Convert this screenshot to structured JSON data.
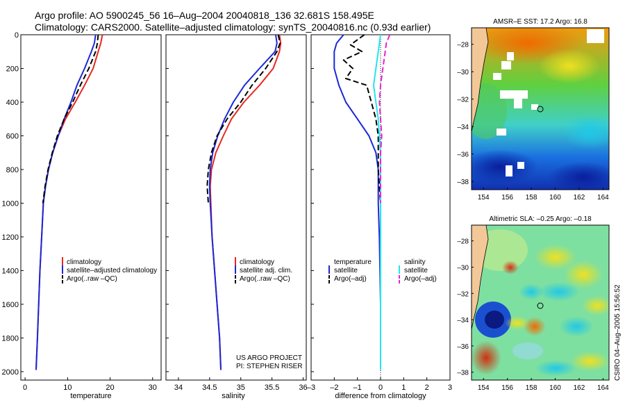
{
  "header": {
    "line1": "Argo profile: AO 5900245_56 16–Aug–2004 20040818_136 32.681S 158.495E",
    "line2": "Climatology: CARS2000. Satellite–adjusted climatology: synTS_20040816.nc (0.93d earlier)"
  },
  "colors": {
    "climatology": "#e8281e",
    "satellite": "#1a28d8",
    "argo": "#000000",
    "sal_satellite": "#22e6ea",
    "sal_argo": "#e622d6"
  },
  "project_credit": {
    "line1": "US ARGO PROJECT",
    "line2": "PI: STEPHEN RISER"
  },
  "timestamp": "CSIRO 04–Aug–2005 15:56:52",
  "chart_data": [
    {
      "id": "temperature",
      "type": "line",
      "xlabel": "temperature",
      "ylabel": "",
      "xlim": [
        -1,
        32
      ],
      "ylim": [
        2050,
        0
      ],
      "x_ticks": [
        0,
        10,
        20,
        30
      ],
      "y_ticks": [
        0,
        200,
        400,
        600,
        800,
        1000,
        1200,
        1400,
        1600,
        1800,
        2000
      ],
      "legend": [
        "climatology",
        "satellite–adjusted climatology",
        "Argo(..raw –QC)"
      ],
      "series": [
        {
          "name": "climatology",
          "color": "#e8281e",
          "dash": "",
          "points": [
            [
              18.2,
              0
            ],
            [
              17.8,
              50
            ],
            [
              17.2,
              100
            ],
            [
              16.0,
              200
            ],
            [
              14.0,
              300
            ],
            [
              11.8,
              400
            ],
            [
              9.5,
              500
            ],
            [
              7.8,
              600
            ],
            [
              6.5,
              700
            ],
            [
              5.5,
              800
            ],
            [
              4.8,
              900
            ],
            [
              4.3,
              1000
            ],
            [
              3.9,
              1200
            ],
            [
              3.5,
              1400
            ],
            [
              3.2,
              1600
            ],
            [
              2.9,
              1800
            ],
            [
              2.6,
              1980
            ]
          ]
        },
        {
          "name": "satellite–adjusted climatology",
          "color": "#1a28d8",
          "dash": "",
          "points": [
            [
              16.6,
              0
            ],
            [
              16.3,
              50
            ],
            [
              15.6,
              100
            ],
            [
              14.0,
              200
            ],
            [
              12.2,
              300
            ],
            [
              10.8,
              400
            ],
            [
              9.2,
              500
            ],
            [
              7.8,
              600
            ],
            [
              6.5,
              700
            ],
            [
              5.5,
              800
            ],
            [
              4.8,
              900
            ],
            [
              4.3,
              1000
            ],
            [
              3.9,
              1200
            ],
            [
              3.5,
              1400
            ],
            [
              3.2,
              1600
            ],
            [
              2.9,
              1800
            ],
            [
              2.6,
              1990
            ]
          ]
        },
        {
          "name": "Argo(..raw –QC)",
          "color": "#000000",
          "dash": "8,4",
          "points": [
            [
              17.2,
              0
            ],
            [
              17.0,
              50
            ],
            [
              16.6,
              100
            ],
            [
              15.0,
              200
            ],
            [
              13.0,
              300
            ],
            [
              11.2,
              400
            ],
            [
              9.2,
              500
            ],
            [
              7.6,
              600
            ],
            [
              6.4,
              700
            ],
            [
              5.4,
              800
            ],
            [
              4.7,
              900
            ],
            [
              4.2,
              1000
            ]
          ]
        }
      ]
    },
    {
      "id": "salinity",
      "type": "line",
      "xlabel": "salinity",
      "ylabel": "",
      "xlim": [
        33.8,
        36.05
      ],
      "ylim": [
        2050,
        0
      ],
      "x_ticks": [
        34,
        34.5,
        35,
        35.5,
        36
      ],
      "x_tick_labels": [
        "34",
        "34.5",
        "35",
        "35.5",
        "36"
      ],
      "legend": [
        "climatology",
        "satellite adj. clim.",
        "Argo(..raw –QC)"
      ],
      "series": [
        {
          "name": "climatology",
          "color": "#e8281e",
          "dash": "",
          "points": [
            [
              35.62,
              0
            ],
            [
              35.64,
              50
            ],
            [
              35.62,
              100
            ],
            [
              35.52,
              200
            ],
            [
              35.3,
              300
            ],
            [
              35.05,
              400
            ],
            [
              34.85,
              500
            ],
            [
              34.72,
              600
            ],
            [
              34.6,
              700
            ],
            [
              34.53,
              800
            ],
            [
              34.51,
              900
            ],
            [
              34.52,
              1000
            ],
            [
              34.54,
              1200
            ],
            [
              34.58,
              1400
            ],
            [
              34.62,
              1600
            ],
            [
              34.66,
              1800
            ],
            [
              34.68,
              1980
            ]
          ]
        },
        {
          "name": "satellite adj. clim.",
          "color": "#1a28d8",
          "dash": "",
          "points": [
            [
              35.56,
              0
            ],
            [
              35.58,
              50
            ],
            [
              35.55,
              100
            ],
            [
              35.3,
              200
            ],
            [
              35.06,
              300
            ],
            [
              34.88,
              400
            ],
            [
              34.74,
              500
            ],
            [
              34.63,
              600
            ],
            [
              34.55,
              700
            ],
            [
              34.51,
              800
            ],
            [
              34.5,
              900
            ],
            [
              34.51,
              1000
            ],
            [
              34.54,
              1200
            ],
            [
              34.58,
              1400
            ],
            [
              34.62,
              1600
            ],
            [
              34.66,
              1800
            ],
            [
              34.68,
              1990
            ]
          ]
        },
        {
          "name": "Argo(..raw –QC)",
          "color": "#000000",
          "dash": "8,4",
          "points": [
            [
              35.6,
              0
            ],
            [
              35.63,
              50
            ],
            [
              35.58,
              100
            ],
            [
              35.4,
              200
            ],
            [
              35.18,
              300
            ],
            [
              35.0,
              400
            ],
            [
              34.78,
              500
            ],
            [
              34.62,
              600
            ],
            [
              34.53,
              700
            ],
            [
              34.48,
              800
            ],
            [
              34.46,
              900
            ],
            [
              34.48,
              1000
            ]
          ]
        }
      ]
    },
    {
      "id": "difference",
      "type": "line",
      "xlabel": "difference from climatology",
      "ylabel": "",
      "xlim": [
        -3,
        3
      ],
      "ylim": [
        2050,
        0
      ],
      "x_ticks": [
        -3,
        -2,
        -1,
        0,
        1,
        2,
        3
      ],
      "x_tick_labels": [
        "–3",
        "–2",
        "–1",
        "0",
        "1",
        "2",
        "3"
      ],
      "legend_left": [
        "temperature",
        "satellite",
        "Argo(–adj)"
      ],
      "legend_right": [
        "salinity",
        "satellite",
        "Argo(–adj)"
      ],
      "series": [
        {
          "name": "temperature satellite",
          "color": "#1a28d8",
          "dash": "",
          "points": [
            [
              -1.6,
              0
            ],
            [
              -1.9,
              50
            ],
            [
              -2.0,
              100
            ],
            [
              -2.0,
              200
            ],
            [
              -1.8,
              300
            ],
            [
              -1.5,
              400
            ],
            [
              -1.0,
              500
            ],
            [
              -0.5,
              600
            ],
            [
              -0.2,
              700
            ],
            [
              -0.1,
              800
            ],
            [
              -0.1,
              1000
            ],
            [
              -0.05,
              1200
            ],
            [
              0,
              1600
            ],
            [
              0,
              1990
            ]
          ]
        },
        {
          "name": "temperature Argo(–adj)",
          "color": "#000000",
          "dash": "8,4",
          "points": [
            [
              -0.7,
              0
            ],
            [
              -1.3,
              60
            ],
            [
              -0.8,
              100
            ],
            [
              -1.6,
              150
            ],
            [
              -1.2,
              200
            ],
            [
              -1.5,
              260
            ],
            [
              -0.6,
              300
            ],
            [
              -0.4,
              400
            ],
            [
              -0.2,
              500
            ],
            [
              -0.1,
              600
            ],
            [
              -0.1,
              700
            ],
            [
              -0.1,
              800
            ],
            [
              0,
              1000
            ]
          ]
        },
        {
          "name": "salinity satellite",
          "color": "#22e6ea",
          "dash": "",
          "points": [
            [
              0,
              0
            ],
            [
              -0.1,
              100
            ],
            [
              -0.2,
              200
            ],
            [
              -0.3,
              300
            ],
            [
              -0.2,
              400
            ],
            [
              -0.1,
              500
            ],
            [
              -0.05,
              600
            ],
            [
              0,
              700
            ],
            [
              0,
              800
            ],
            [
              0,
              1000
            ],
            [
              0,
              1400
            ],
            [
              0,
              1990
            ]
          ]
        },
        {
          "name": "salinity Argo(–adj)",
          "color": "#e622d6",
          "dash": "8,4",
          "points": [
            [
              0.4,
              0
            ],
            [
              0.25,
              50
            ],
            [
              0.2,
              100
            ],
            [
              0.1,
              200
            ],
            [
              0.0,
              300
            ],
            [
              -0.05,
              400
            ],
            [
              0.0,
              500
            ],
            [
              0.05,
              600
            ],
            [
              0,
              700
            ],
            [
              0,
              800
            ],
            [
              0,
              1000
            ]
          ]
        }
      ]
    },
    {
      "id": "sst_map",
      "type": "heatmap",
      "title": "AMSR–E SST: 17.2 Argo: 16.8",
      "xlim": [
        153,
        164.5
      ],
      "ylim": [
        -38.6,
        -26.8
      ],
      "x_ticks": [
        154,
        156,
        158,
        160,
        162,
        164
      ],
      "y_ticks": [
        -28,
        -30,
        -32,
        -34,
        -36,
        -38
      ],
      "y_tick_labels": [
        "–28",
        "–30",
        "–32",
        "–34",
        "–36",
        "–38"
      ],
      "profile_location": [
        158.5,
        -32.7
      ]
    },
    {
      "id": "sla_map",
      "type": "heatmap",
      "title": "Altimetric SLA: –0.25 Argo: –0.18",
      "xlim": [
        153,
        164.5
      ],
      "ylim": [
        -38.6,
        -26.8
      ],
      "x_ticks": [
        154,
        156,
        158,
        160,
        162,
        164
      ],
      "y_ticks": [
        -28,
        -30,
        -32,
        -34,
        -36,
        -38
      ],
      "y_tick_labels": [
        "–28",
        "–30",
        "–32",
        "–34",
        "–36",
        "–38"
      ],
      "profile_location": [
        158.5,
        -32.7
      ]
    }
  ]
}
